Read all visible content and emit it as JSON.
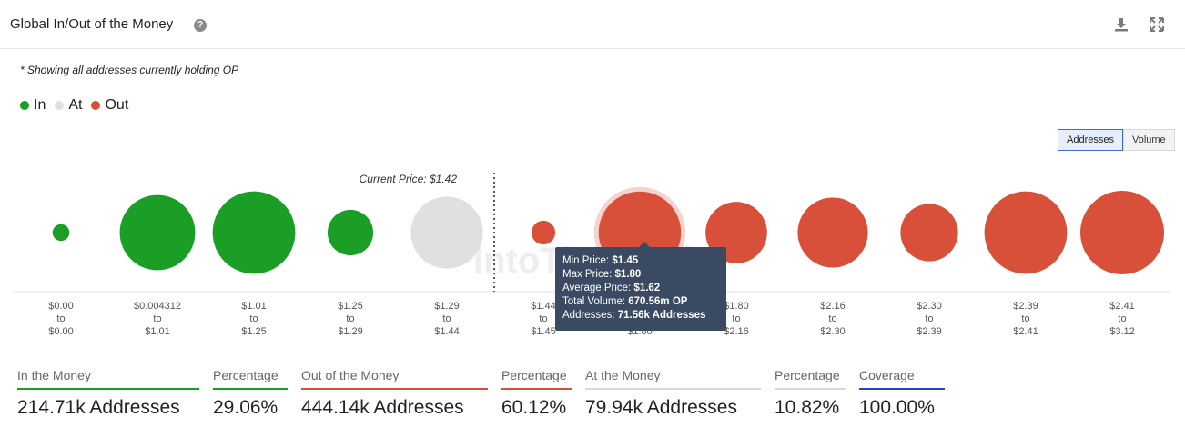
{
  "header": {
    "title": "Global In/Out of the Money",
    "help_icon": "question-circle-icon",
    "download_icon": "download-icon",
    "expand_icon": "expand-icon"
  },
  "note": "* Showing all addresses currently holding OP",
  "legend": [
    {
      "label": "In",
      "color": "#1a9e26"
    },
    {
      "label": "At",
      "color": "#e0e0e0"
    },
    {
      "label": "Out",
      "color": "#d9503a"
    }
  ],
  "toggle": {
    "addresses": "Addresses",
    "volume": "Volume",
    "active": "addresses"
  },
  "chart_data": {
    "type": "bubble",
    "title": "Global In/Out of the Money",
    "current_price_label": "Current Price: $1.42",
    "size_metric": "Addresses",
    "ranges": [
      {
        "from": "$0.00",
        "to": "$0.00",
        "status": "in",
        "addresses_k": 3
      },
      {
        "from": "$0.004312",
        "to": "$1.01",
        "status": "in",
        "addresses_k": 60
      },
      {
        "from": "$1.01",
        "to": "$1.25",
        "status": "in",
        "addresses_k": 72
      },
      {
        "from": "$1.25",
        "to": "$1.29",
        "status": "in",
        "addresses_k": 22
      },
      {
        "from": "$1.29",
        "to": "$1.44",
        "status": "at",
        "addresses_k": 55
      },
      {
        "from": "$1.44",
        "to": "$1.45",
        "status": "out",
        "addresses_k": 6
      },
      {
        "from": "$1.45",
        "to": "$1.80",
        "status": "out",
        "addresses_k": 71.56,
        "highlighted": true
      },
      {
        "from": "$1.80",
        "to": "$2.16",
        "status": "out",
        "addresses_k": 40
      },
      {
        "from": "$2.16",
        "to": "$2.30",
        "status": "out",
        "addresses_k": 52
      },
      {
        "from": "$2.30",
        "to": "$2.39",
        "status": "out",
        "addresses_k": 35
      },
      {
        "from": "$2.39",
        "to": "$2.41",
        "status": "out",
        "addresses_k": 72
      },
      {
        "from": "$2.41",
        "to": "$3.12",
        "status": "out",
        "addresses_k": 74
      }
    ],
    "separator_word": "to",
    "watermark": "IntoTheBlock"
  },
  "tooltip": {
    "min_label": "Min Price:",
    "min_value": "$1.45",
    "max_label": "Max Price:",
    "max_value": "$1.80",
    "avg_label": "Average Price:",
    "avg_value": "$1.62",
    "vol_label": "Total Volume:",
    "vol_value": "670.56m OP",
    "addr_label": "Addresses:",
    "addr_value": "71.56k Addresses"
  },
  "stats": [
    {
      "label": "In the Money",
      "value": "214.71k Addresses",
      "color": "#1a9e26"
    },
    {
      "label": "Percentage",
      "value": "29.06%",
      "color": "#1a9e26"
    },
    {
      "label": "Out of the Money",
      "value": "444.14k Addresses",
      "color": "#d9503a"
    },
    {
      "label": "Percentage",
      "value": "60.12%",
      "color": "#d9503a"
    },
    {
      "label": "At the Money",
      "value": "79.94k Addresses",
      "color": "#d8d8d8"
    },
    {
      "label": "Percentage",
      "value": "10.82%",
      "color": "#d8d8d8"
    },
    {
      "label": "Coverage",
      "value": "100.00%",
      "color": "#2346c8"
    }
  ],
  "colors": {
    "in": "#1a9e26",
    "at": "#e0e0e0",
    "out": "#d9503a"
  }
}
